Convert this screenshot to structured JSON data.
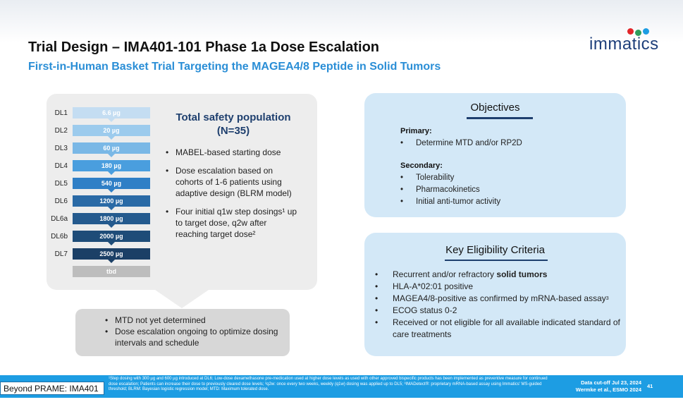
{
  "header": {
    "title": "Trial Design – IMA401-101 Phase 1a Dose Escalation",
    "subtitle": "First-in-Human Basket Trial Targeting the MAGEA4/8 Peptide in Solid Tumors"
  },
  "logo": {
    "text": "immatics",
    "dot_colors": [
      "#e2262a",
      "#2d9d5c",
      "#1d9de3"
    ]
  },
  "dose_levels": [
    {
      "label": "DL1",
      "dose": "6.6 µg",
      "color": "#c4ddf2"
    },
    {
      "label": "DL2",
      "dose": "20 µg",
      "color": "#9ccbed"
    },
    {
      "label": "DL3",
      "dose": "60 µg",
      "color": "#7ab8e6"
    },
    {
      "label": "DL4",
      "dose": "180 µg",
      "color": "#4a9ede"
    },
    {
      "label": "DL5",
      "dose": "540 µg",
      "color": "#2f7fc6"
    },
    {
      "label": "DL6",
      "dose": "1200 µg",
      "color": "#2a6aa6"
    },
    {
      "label": "DL6a",
      "dose": "1800 µg",
      "color": "#245a8e"
    },
    {
      "label": "DL6b",
      "dose": "2000 µg",
      "color": "#1e4c78"
    },
    {
      "label": "DL7",
      "dose": "2500 µg",
      "color": "#1b3f66"
    },
    {
      "label": "",
      "dose": "tbd",
      "color": "#bdbdbd"
    }
  ],
  "safety": {
    "title_line1": "Total safety population",
    "title_line2": "(N=35)",
    "bullets": [
      "MABEL-based starting dose",
      "Dose escalation based on cohorts of 1-6 patients using adaptive design (BLRM model)",
      "Four initial q1w step dosings¹ up to target dose, q2w after reaching target dose²"
    ]
  },
  "status_box": {
    "bullets": [
      "MTD not yet determined",
      "Dose escalation ongoing to optimize dosing intervals and schedule"
    ]
  },
  "objectives": {
    "title": "Objectives",
    "primary_label": "Primary:",
    "primary": [
      "Determine MTD and/or RP2D"
    ],
    "secondary_label": "Secondary:",
    "secondary": [
      "Tolerability",
      "Pharmacokinetics",
      "Initial anti-tumor activity"
    ]
  },
  "eligibility": {
    "title": "Key Eligibility Criteria",
    "item1_prefix": "Recurrent and/or refractory ",
    "item1_bold": "solid tumors",
    "item2": "HLA-A*02:01 positive",
    "item3": "MAGEA4/8-positive as confirmed by mRNA-based assay",
    "item3_sup": "3",
    "item4": "ECOG status 0-2",
    "item5": "Received or not eligible for all available indicated standard of care treatments"
  },
  "footer": {
    "section_label": "Beyond PRAME: IMA401",
    "note": "¹Step dosing with 300 µg and 600 µg introduced at DL6; Low-dose dexamethasone pre-medication used at higher dose levels as used with other approved bispecific products has been implemented as preventive measure for continued dose escalation; Patients can increase their dose to previously cleared dose levels; ²q2w: once every two weeks, weekly (q1w) dosing was applied up to DL5; ³IMADetect®: proprietary mRNA-based assay using Immatics' MS-guided threshold; BLRM: Bayesian logistic regression model; MTD: Maximum tolerated dose.",
    "cutoff": "Data cut-off Jul 23, 2024",
    "citation": "Wermke et al., ESMO 2024",
    "page": "41"
  }
}
